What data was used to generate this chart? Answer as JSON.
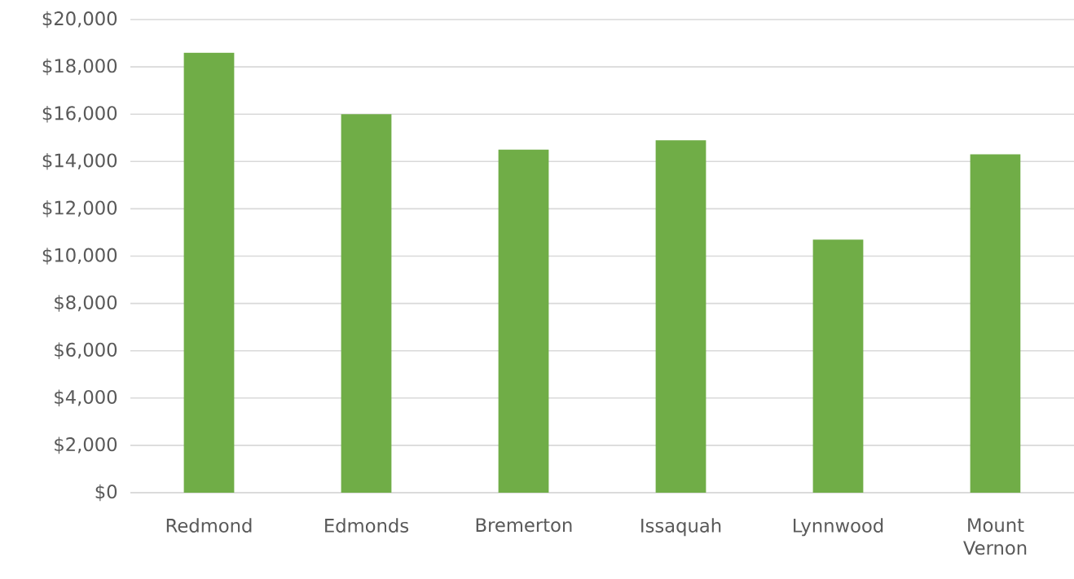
{
  "chart_data": {
    "type": "bar",
    "categories": [
      "Redmond",
      "Edmonds",
      "Bremerton",
      "Issaquah",
      "Lynnwood",
      "Mount Vernon"
    ],
    "values": [
      18600,
      16000,
      14500,
      14900,
      10700,
      14300
    ],
    "color": "#70ad47",
    "ylim": [
      0,
      20000
    ],
    "yticks": [
      {
        "value": 0,
        "label": "$0"
      },
      {
        "value": 2000,
        "label": "$2,000"
      },
      {
        "value": 4000,
        "label": "$4,000"
      },
      {
        "value": 6000,
        "label": "$6,000"
      },
      {
        "value": 8000,
        "label": "$8,000"
      },
      {
        "value": 10000,
        "label": "$10,000"
      },
      {
        "value": 12000,
        "label": "$12,000"
      },
      {
        "value": 14000,
        "label": "$14,000"
      },
      {
        "value": 16000,
        "label": "$16,000"
      },
      {
        "value": 18000,
        "label": "$18,000"
      },
      {
        "value": 20000,
        "label": "$20,000"
      }
    ],
    "grid": "y"
  }
}
